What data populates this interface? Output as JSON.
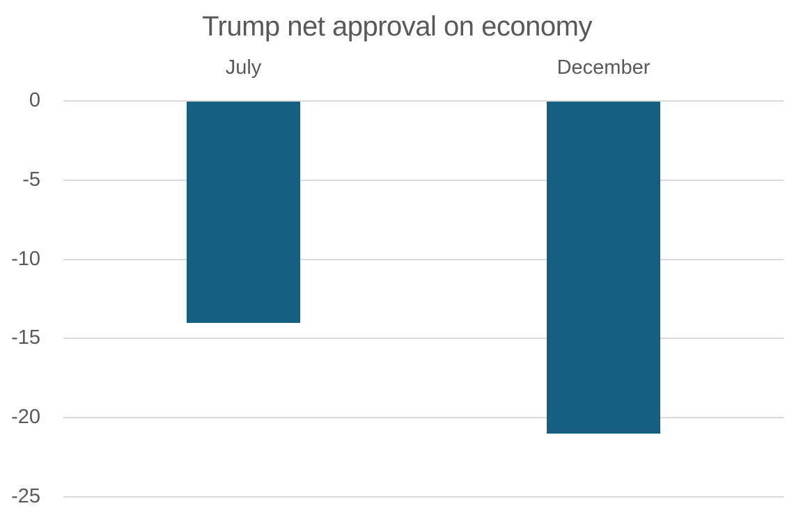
{
  "chart_data": {
    "type": "bar",
    "title": "Trump net approval on economy",
    "categories": [
      "July",
      "December"
    ],
    "values": [
      -14,
      -21
    ],
    "xlabel": "",
    "ylabel": "",
    "ylim": [
      0,
      -25
    ],
    "yticks": [
      0,
      -5,
      -10,
      -15,
      -20,
      -25
    ],
    "ytick_labels": [
      "0",
      "-5",
      "-10",
      "-15",
      "-20",
      "-25"
    ],
    "grid": true,
    "legend": false,
    "category_labels_position": "top",
    "colors": {
      "bar": "#156082",
      "text": "#595959",
      "gridline": "#D9D9D9",
      "background": "#FFFFFF"
    }
  }
}
